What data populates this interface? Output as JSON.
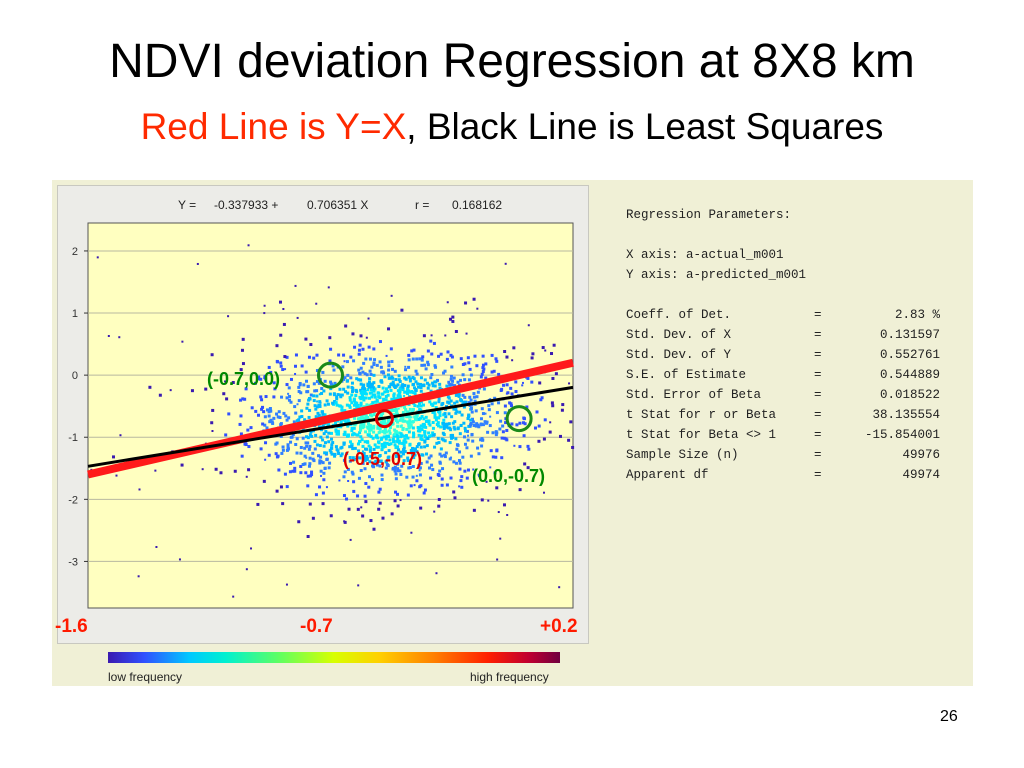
{
  "slide": {
    "title": "NDVI deviation Regression at 8X8 km",
    "subtitle_red": "Red Line is Y=X",
    "subtitle_black": ", Black Line is Least Squares",
    "page_number": "26"
  },
  "equation": {
    "y_label": "Y =",
    "intercept": "-0.337933 +",
    "slope": "0.706351 X",
    "r_label": "r =",
    "r_value": "0.168162"
  },
  "x_axis_labels": {
    "left": "-1.6",
    "mid": "-0.7",
    "right": "+0.2"
  },
  "legend": {
    "low": "low frequency",
    "high": "high frequency"
  },
  "annotations": {
    "a1": "(-0.7,0.0)",
    "a2": "(-0.5,-0.7)",
    "a3": "(0.0,-0.7)"
  },
  "regression_parameters": {
    "header": "Regression Parameters:",
    "x_axis": "X axis: a-actual_m001",
    "y_axis": "Y axis: a-predicted_m001",
    "rows": [
      {
        "label": "Coeff. of Det.",
        "eq": "=",
        "value": "2.83 %"
      },
      {
        "label": "Std. Dev. of X",
        "eq": "=",
        "value": "0.131597"
      },
      {
        "label": "Std. Dev. of Y",
        "eq": "=",
        "value": "0.552761"
      },
      {
        "label": "S.E. of Estimate",
        "eq": "=",
        "value": "0.544889"
      },
      {
        "label": "Std. Error of Beta",
        "eq": "=",
        "value": "0.018522"
      },
      {
        "label": "t Stat for r or Beta",
        "eq": "=",
        "value": "38.135554"
      },
      {
        "label": "t Stat for Beta <> 1",
        "eq": "=",
        "value": "-15.854001"
      },
      {
        "label": "Sample Size (n)",
        "eq": "=",
        "value": "49976"
      },
      {
        "label": "Apparent df",
        "eq": "=",
        "value": "49974"
      }
    ]
  },
  "colors": {
    "plot_bg": "#ffffc0",
    "identity_line": "#ff1a1a",
    "least_squares_line": "#000000",
    "circle_green": "#1a8a1a",
    "circle_red": "#dd0000"
  },
  "chart_data": {
    "type": "scatter",
    "title": "",
    "xlabel": "",
    "ylabel": "",
    "xlim": [
      -1.6,
      0.2
    ],
    "ylim": [
      -3.75,
      2.45
    ],
    "y_ticks": [
      2,
      1,
      0,
      -1,
      -2,
      -3
    ],
    "x_tick_labels": [
      "-1.6",
      "-0.7",
      "+0.2"
    ],
    "grid": true,
    "density_center": [
      -0.5,
      -0.7
    ],
    "density_spread": [
      0.25,
      0.55
    ],
    "lines": [
      {
        "name": "Y=X",
        "slope": 1.0,
        "intercept": 0.0
      },
      {
        "name": "Least Squares",
        "slope": 0.706351,
        "intercept": -0.337933
      }
    ],
    "highlight_points": [
      {
        "x": -0.7,
        "y": 0.0
      },
      {
        "x": -0.5,
        "y": -0.7
      },
      {
        "x": 0.0,
        "y": -0.7
      }
    ]
  }
}
